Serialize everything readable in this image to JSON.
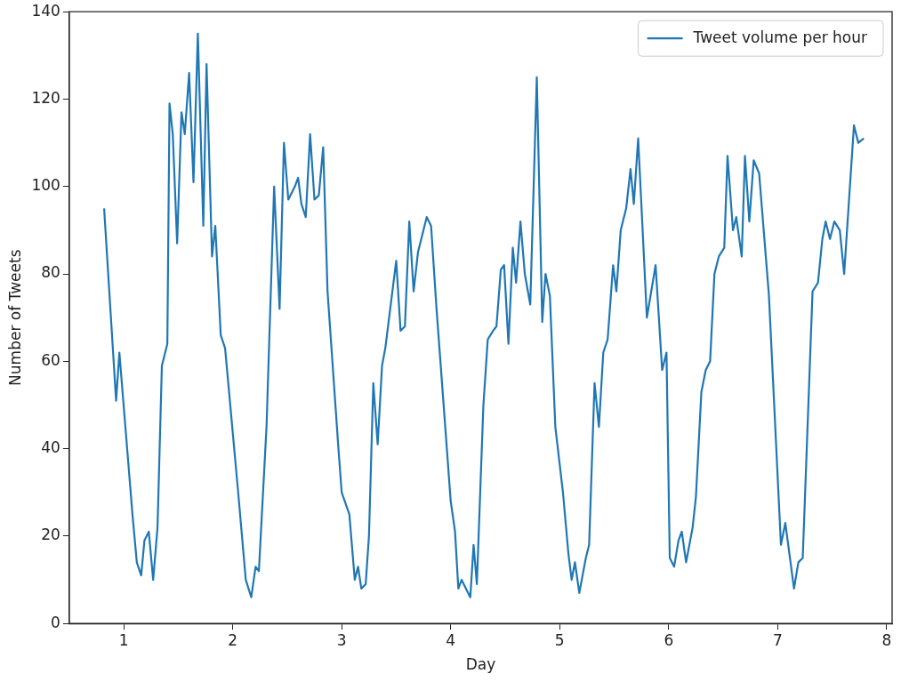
{
  "chart_data": {
    "type": "line",
    "xlabel": "Day",
    "ylabel": "Number of Tweets",
    "xlim": [
      0.5,
      8.05
    ],
    "ylim": [
      0,
      140
    ],
    "xticks": [
      1,
      2,
      3,
      4,
      5,
      6,
      7,
      8
    ],
    "yticks": [
      0,
      20,
      40,
      60,
      80,
      100,
      120,
      140
    ],
    "grid": false,
    "legend": "top right",
    "marker": "none",
    "line_style": "solid",
    "series": [
      {
        "name": "Tweet volume per hour",
        "color": "#1f77b4",
        "x": [
          0.82,
          0.93,
          0.96,
          1.08,
          1.12,
          1.16,
          1.19,
          1.23,
          1.27,
          1.31,
          1.35,
          1.4,
          1.42,
          1.45,
          1.49,
          1.53,
          1.56,
          1.6,
          1.64,
          1.68,
          1.73,
          1.76,
          1.81,
          1.84,
          1.89,
          1.93,
          2.05,
          2.12,
          2.17,
          2.21,
          2.24,
          2.31,
          2.38,
          2.43,
          2.47,
          2.51,
          2.57,
          2.6,
          2.63,
          2.67,
          2.71,
          2.75,
          2.79,
          2.83,
          2.87,
          2.97,
          3.0,
          3.07,
          3.12,
          3.15,
          3.18,
          3.22,
          3.25,
          3.29,
          3.33,
          3.37,
          3.4,
          3.46,
          3.5,
          3.54,
          3.58,
          3.62,
          3.66,
          3.7,
          3.78,
          3.82,
          3.87,
          3.95,
          4.0,
          4.04,
          4.07,
          4.1,
          4.14,
          4.18,
          4.21,
          4.24,
          4.3,
          4.34,
          4.39,
          4.42,
          4.46,
          4.49,
          4.53,
          4.57,
          4.6,
          4.64,
          4.68,
          4.73,
          4.79,
          4.84,
          4.87,
          4.91,
          4.96,
          5.03,
          5.08,
          5.11,
          5.14,
          5.18,
          5.24,
          5.27,
          5.32,
          5.36,
          5.4,
          5.44,
          5.49,
          5.52,
          5.56,
          5.61,
          5.65,
          5.68,
          5.72,
          5.8,
          5.88,
          5.94,
          5.98,
          6.01,
          6.05,
          6.09,
          6.12,
          6.16,
          6.22,
          6.25,
          6.3,
          6.34,
          6.38,
          6.42,
          6.46,
          6.51,
          6.54,
          6.59,
          6.62,
          6.67,
          6.7,
          6.74,
          6.78,
          6.83,
          6.92,
          7.03,
          7.07,
          7.15,
          7.19,
          7.23,
          7.32,
          7.37,
          7.41,
          7.44,
          7.48,
          7.52,
          7.57,
          7.61,
          7.7,
          7.74,
          7.79
        ],
        "values": [
          95,
          51,
          62,
          25,
          14,
          11,
          19,
          21,
          10,
          22,
          59,
          64,
          119,
          112,
          87,
          117,
          112,
          126,
          101,
          135,
          91,
          128,
          84,
          91,
          66,
          63,
          30,
          10,
          6,
          13,
          12,
          45,
          100,
          72,
          110,
          97,
          100,
          102,
          96,
          93,
          112,
          97,
          98,
          109,
          76,
          40,
          30,
          25,
          10,
          13,
          8,
          9,
          20,
          55,
          41,
          59,
          63,
          75,
          83,
          67,
          68,
          92,
          76,
          85,
          93,
          91,
          72,
          45,
          28,
          21,
          8,
          10,
          8,
          6,
          18,
          9,
          50,
          65,
          67,
          68,
          81,
          82,
          64,
          86,
          78,
          92,
          80,
          73,
          125,
          69,
          80,
          75,
          45,
          30,
          16,
          10,
          14,
          7,
          15,
          18,
          55,
          45,
          62,
          65,
          82,
          76,
          90,
          95,
          104,
          96,
          111,
          70,
          82,
          58,
          62,
          15,
          13,
          19,
          21,
          14,
          22,
          29,
          53,
          58,
          60,
          80,
          84,
          86,
          107,
          90,
          93,
          84,
          107,
          92,
          106,
          103,
          75,
          18,
          23,
          8,
          14,
          15,
          76,
          78,
          88,
          92,
          88,
          92,
          90,
          80,
          114,
          110,
          111
        ]
      }
    ]
  }
}
